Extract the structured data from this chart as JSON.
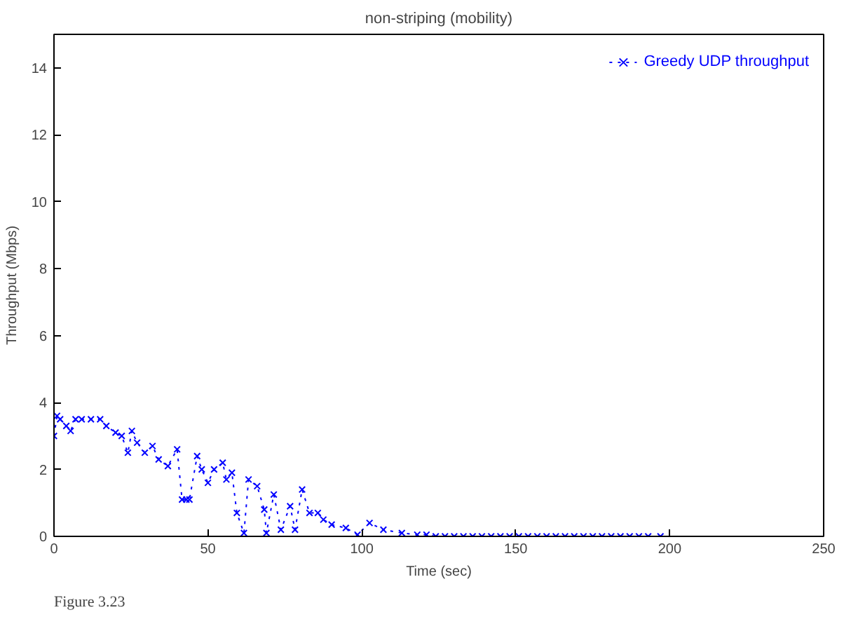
{
  "chart_data": {
    "type": "line",
    "title": "non-striping (mobility)",
    "xlabel": "Time (sec)",
    "ylabel": "Throughput (Mbps)",
    "annotations": [
      "Figure 3.23"
    ],
    "xlim": [
      0,
      250
    ],
    "xticks": [
      0,
      50,
      100,
      150,
      200,
      250
    ],
    "ylim": [
      0,
      15
    ],
    "yticks": [
      0,
      2,
      4,
      6,
      8,
      10,
      12,
      14
    ],
    "grid": false,
    "legend": "top right",
    "marker": "cross",
    "line_style": "dotted",
    "series": [
      {
        "name": "Greedy UDP throughput",
        "color": "#0000ff",
        "x": [
          0,
          1,
          2,
          4,
          5.4,
          7,
          9,
          12,
          15,
          17,
          20,
          22,
          24,
          25.3,
          27,
          29.5,
          32,
          34,
          37,
          40,
          41.6,
          43,
          44,
          46.5,
          48,
          50,
          52,
          54.8,
          56,
          57.8,
          59.4,
          61.7,
          63.2,
          66,
          68.3,
          69,
          71.4,
          73.7,
          76.7,
          78.3,
          80.6,
          83,
          85.7,
          87.5,
          90.2,
          94.8,
          98.6,
          102.5,
          107,
          113,
          118,
          121,
          124,
          127,
          130,
          133,
          136,
          139,
          142,
          145,
          148,
          151,
          154,
          157,
          160,
          163,
          166,
          169,
          172,
          175,
          178,
          181,
          184,
          187,
          190,
          193,
          197
        ],
        "values": [
          3.0,
          3.6,
          3.5,
          3.3,
          3.15,
          3.5,
          3.5,
          3.5,
          3.5,
          3.3,
          3.1,
          3.0,
          2.5,
          3.15,
          2.8,
          2.5,
          2.7,
          2.3,
          2.1,
          2.6,
          1.1,
          1.1,
          1.1,
          2.4,
          2.0,
          1.6,
          2.0,
          2.2,
          1.7,
          1.9,
          0.7,
          0.1,
          1.7,
          1.5,
          0.8,
          0.1,
          1.25,
          0.2,
          0.9,
          0.2,
          1.4,
          0.7,
          0.7,
          0.5,
          0.35,
          0.25,
          0.05,
          0.4,
          0.2,
          0.1,
          0.05,
          0.05,
          0,
          0,
          0,
          0,
          0,
          0,
          0,
          0,
          0,
          0,
          0,
          0,
          0,
          0,
          0,
          0,
          0,
          0,
          0,
          0,
          0,
          0,
          0,
          0,
          0
        ]
      }
    ]
  }
}
